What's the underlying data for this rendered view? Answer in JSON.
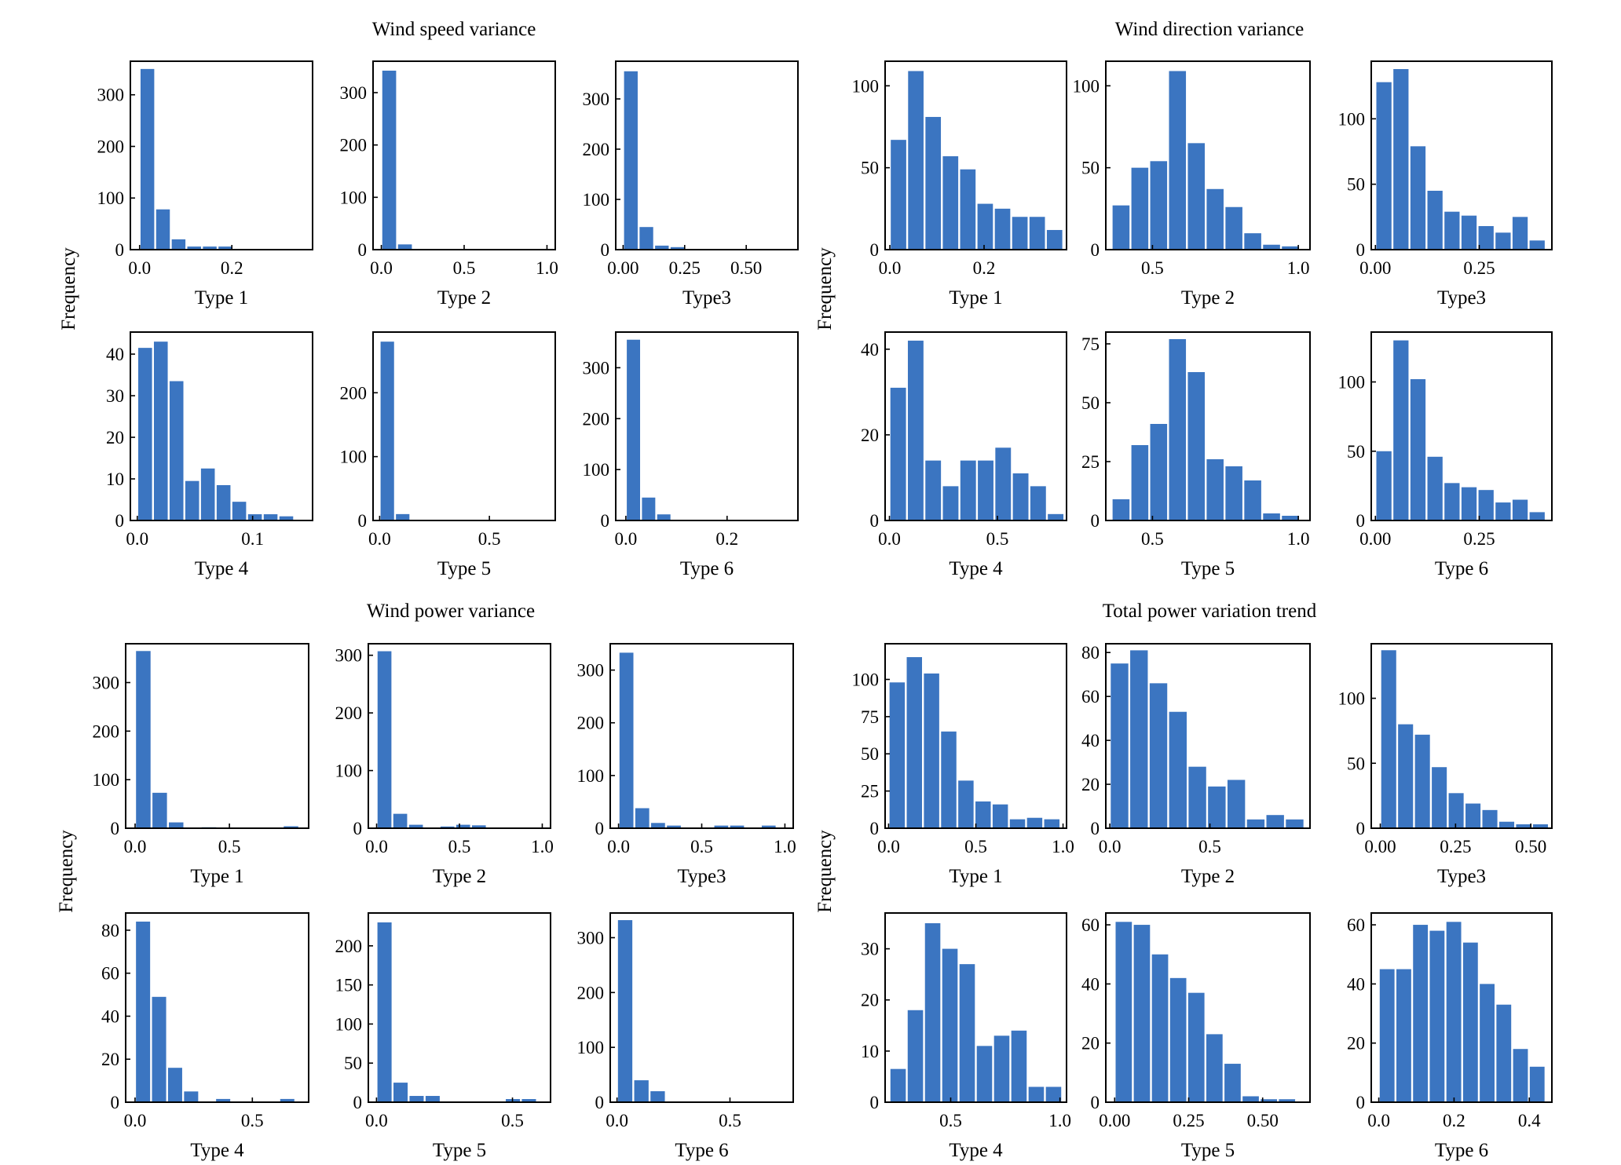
{
  "colors": {
    "bar": "#3b75c1",
    "axis": "#000000"
  },
  "chart_data": [
    {
      "title": "Wind speed variance",
      "ylabel": "Frequency",
      "panels": [
        {
          "type": "bar",
          "xlabel": "Type 1",
          "xlim": [
            -0.02,
            0.375
          ],
          "ylim": [
            0,
            365
          ],
          "xticks": [
            0.0,
            0.2
          ],
          "xtick_labels": [
            "0.0",
            "0.2"
          ],
          "yticks": [
            0,
            100,
            200,
            300
          ],
          "ytick_labels": [
            "0",
            "100",
            "200",
            "300"
          ],
          "bin_start": 0.0,
          "bin_width": 0.0338,
          "values": [
            350,
            78,
            20,
            6,
            6,
            6
          ]
        },
        {
          "type": "bar",
          "xlabel": "Type 2",
          "xlim": [
            -0.05,
            1.05
          ],
          "ylim": [
            0,
            360
          ],
          "xticks": [
            0.0,
            0.5,
            1.0
          ],
          "xtick_labels": [
            "0.0",
            "0.5",
            "1.0"
          ],
          "yticks": [
            0,
            100,
            200,
            300
          ],
          "ytick_labels": [
            "0",
            "100",
            "200",
            "300"
          ],
          "bin_start": 0.0,
          "bin_width": 0.095,
          "values": [
            342,
            10
          ]
        },
        {
          "type": "bar",
          "xlabel": "Type3",
          "xlim": [
            -0.03,
            0.71
          ],
          "ylim": [
            0,
            375
          ],
          "xticks": [
            0.0,
            0.25,
            0.5
          ],
          "xtick_labels": [
            "0.00",
            "0.25",
            "0.50"
          ],
          "yticks": [
            0,
            100,
            200,
            300
          ],
          "ytick_labels": [
            "0",
            "100",
            "200",
            "300"
          ],
          "bin_start": 0.0,
          "bin_width": 0.063,
          "values": [
            355,
            45,
            8,
            5
          ]
        },
        {
          "type": "bar",
          "xlabel": "Type 4",
          "xlim": [
            -0.006,
            0.152
          ],
          "ylim": [
            0,
            45.3
          ],
          "xticks": [
            0.0,
            0.1
          ],
          "xtick_labels": [
            "0.0",
            "0.1"
          ],
          "yticks": [
            0,
            10,
            20,
            30,
            40
          ],
          "ytick_labels": [
            "0",
            "10",
            "20",
            "30",
            "40"
          ],
          "bin_start": 0.0,
          "bin_width": 0.0136,
          "values": [
            41.5,
            43,
            33.5,
            9.5,
            12.5,
            8.5,
            4.5,
            1.5,
            1.5,
            1
          ]
        },
        {
          "type": "bar",
          "xlabel": "Type 5",
          "xlim": [
            -0.03,
            0.8
          ],
          "ylim": [
            0,
            295
          ],
          "xticks": [
            0.0,
            0.5
          ],
          "xtick_labels": [
            "0.0",
            "0.5"
          ],
          "yticks": [
            0,
            100,
            200
          ],
          "ytick_labels": [
            "0",
            "100",
            "200"
          ],
          "bin_start": 0.0,
          "bin_width": 0.07,
          "values": [
            280,
            10
          ]
        },
        {
          "type": "bar",
          "xlabel": "Type 6",
          "xlim": [
            -0.02,
            0.34
          ],
          "ylim": [
            0,
            370
          ],
          "xticks": [
            0.0,
            0.2
          ],
          "xtick_labels": [
            "0.0",
            "0.2"
          ],
          "yticks": [
            0,
            100,
            200,
            300
          ],
          "ytick_labels": [
            "0",
            "100",
            "200",
            "300"
          ],
          "bin_start": 0.0,
          "bin_width": 0.03,
          "values": [
            355,
            45,
            12
          ]
        }
      ]
    },
    {
      "title": "Wind direction variance",
      "ylabel": "Frequency",
      "panels": [
        {
          "type": "bar",
          "xlabel": "Type 1",
          "xlim": [
            -0.01,
            0.375
          ],
          "ylim": [
            0,
            115
          ],
          "xticks": [
            0.0,
            0.2
          ],
          "xtick_labels": [
            "0.0",
            "0.2"
          ],
          "yticks": [
            0,
            50,
            100
          ],
          "ytick_labels": [
            "0",
            "50",
            "100"
          ],
          "bin_start": 0.0,
          "bin_width": 0.0368,
          "values": [
            67,
            109,
            81,
            57,
            49,
            28,
            25,
            20,
            20,
            12
          ]
        },
        {
          "type": "bar",
          "xlabel": "Type 2",
          "xlim": [
            0.34,
            1.04
          ],
          "ylim": [
            0,
            115
          ],
          "xticks": [
            0.5,
            1.0
          ],
          "xtick_labels": [
            "0.5",
            "1.0"
          ],
          "yticks": [
            0,
            50,
            100
          ],
          "ytick_labels": [
            "0",
            "50",
            "100"
          ],
          "bin_start": 0.36,
          "bin_width": 0.0645,
          "values": [
            27,
            50,
            54,
            109,
            65,
            37,
            26,
            10,
            3,
            2
          ]
        },
        {
          "type": "bar",
          "xlabel": "Type3",
          "xlim": [
            -0.01,
            0.425
          ],
          "ylim": [
            0,
            144
          ],
          "xticks": [
            0.0,
            0.25
          ],
          "xtick_labels": [
            "0.00",
            "0.25"
          ],
          "yticks": [
            0,
            50,
            100
          ],
          "ytick_labels": [
            "0",
            "50",
            "100"
          ],
          "bin_start": 0.0,
          "bin_width": 0.041,
          "values": [
            128,
            138,
            79,
            45,
            29,
            26,
            18,
            13,
            25,
            7
          ]
        },
        {
          "type": "bar",
          "xlabel": "Type 4",
          "xlim": [
            -0.02,
            0.82
          ],
          "ylim": [
            0,
            44
          ],
          "xticks": [
            0.0,
            0.5
          ],
          "xtick_labels": [
            "0.0",
            "0.5"
          ],
          "yticks": [
            0,
            20,
            40
          ],
          "ytick_labels": [
            "0",
            "20",
            "40"
          ],
          "bin_start": 0.0,
          "bin_width": 0.081,
          "values": [
            31,
            42,
            14,
            8,
            14,
            14,
            17,
            11,
            8,
            1.5
          ]
        },
        {
          "type": "bar",
          "xlabel": "Type 5",
          "xlim": [
            0.34,
            1.04
          ],
          "ylim": [
            0,
            80
          ],
          "xticks": [
            0.5,
            1.0
          ],
          "xtick_labels": [
            "0.5",
            "1.0"
          ],
          "yticks": [
            0,
            25,
            50,
            75
          ],
          "ytick_labels": [
            "0",
            "25",
            "50",
            "75"
          ],
          "bin_start": 0.36,
          "bin_width": 0.0645,
          "values": [
            9,
            32,
            41,
            77,
            63,
            26,
            23,
            17,
            3,
            2
          ]
        },
        {
          "type": "bar",
          "xlabel": "Type 6",
          "xlim": [
            -0.01,
            0.425
          ],
          "ylim": [
            0,
            136
          ],
          "xticks": [
            0.0,
            0.25
          ],
          "xtick_labels": [
            "0.00",
            "0.25"
          ],
          "yticks": [
            0,
            50,
            100
          ],
          "ytick_labels": [
            "0",
            "50",
            "100"
          ],
          "bin_start": 0.0,
          "bin_width": 0.041,
          "values": [
            50,
            130,
            102,
            46,
            27,
            24,
            22,
            13,
            15,
            6
          ]
        }
      ]
    },
    {
      "title": "Wind power variance",
      "ylabel": "Frequency",
      "panels": [
        {
          "type": "bar",
          "xlabel": "Type 1",
          "xlim": [
            -0.05,
            0.92
          ],
          "ylim": [
            0,
            380
          ],
          "xticks": [
            0.0,
            0.5
          ],
          "xtick_labels": [
            "0.0",
            "0.5"
          ],
          "yticks": [
            0,
            100,
            200,
            300
          ],
          "ytick_labels": [
            "0",
            "100",
            "200",
            "300"
          ],
          "bin_start": 0.0,
          "bin_width": 0.087,
          "values": [
            365,
            73,
            12,
            0,
            2,
            0,
            0,
            0,
            0,
            4
          ]
        },
        {
          "type": "bar",
          "xlabel": "Type 2",
          "xlim": [
            -0.05,
            1.05
          ],
          "ylim": [
            0,
            320
          ],
          "xticks": [
            0.0,
            0.5,
            1.0
          ],
          "xtick_labels": [
            "0.0",
            "0.5",
            "1.0"
          ],
          "yticks": [
            0,
            100,
            200,
            300
          ],
          "ytick_labels": [
            "0",
            "100",
            "200",
            "300"
          ],
          "bin_start": 0.0,
          "bin_width": 0.095,
          "values": [
            307,
            25,
            6,
            0,
            3,
            6,
            5,
            0,
            0,
            0
          ]
        },
        {
          "type": "bar",
          "xlabel": "Type3",
          "xlim": [
            -0.05,
            1.05
          ],
          "ylim": [
            0,
            350
          ],
          "xticks": [
            0.0,
            0.5,
            1.0
          ],
          "xtick_labels": [
            "0.0",
            "0.5",
            "1.0"
          ],
          "yticks": [
            0,
            100,
            200,
            300
          ],
          "ytick_labels": [
            "0",
            "100",
            "200",
            "300"
          ],
          "bin_start": 0.0,
          "bin_width": 0.095,
          "values": [
            333,
            38,
            10,
            5,
            0,
            0,
            5,
            5,
            0,
            5
          ]
        },
        {
          "type": "bar",
          "xlabel": "Type 4",
          "xlim": [
            -0.04,
            0.74
          ],
          "ylim": [
            0,
            88
          ],
          "xticks": [
            0.0,
            0.5
          ],
          "xtick_labels": [
            "0.0",
            "0.5"
          ],
          "yticks": [
            0,
            20,
            40,
            60,
            80
          ],
          "ytick_labels": [
            "0",
            "20",
            "40",
            "60",
            "80"
          ],
          "bin_start": 0.0,
          "bin_width": 0.0683,
          "values": [
            84,
            49,
            16,
            5,
            0,
            1.5,
            0,
            0,
            0,
            1.5
          ]
        },
        {
          "type": "bar",
          "xlabel": "Type 5",
          "xlim": [
            -0.03,
            0.64
          ],
          "ylim": [
            0,
            242
          ],
          "xticks": [
            0.0,
            0.5
          ],
          "xtick_labels": [
            "0.0",
            "0.5"
          ],
          "yticks": [
            0,
            50,
            100,
            150,
            200
          ],
          "ytick_labels": [
            "0",
            "50",
            "100",
            "150",
            "200"
          ],
          "bin_start": 0.0,
          "bin_width": 0.059,
          "values": [
            230,
            25,
            8,
            8,
            0,
            0,
            0,
            0,
            4,
            4
          ]
        },
        {
          "type": "bar",
          "xlabel": "Type 6",
          "xlim": [
            -0.03,
            0.78
          ],
          "ylim": [
            0,
            345
          ],
          "xticks": [
            0.0,
            0.5
          ],
          "xtick_labels": [
            "0.0",
            "0.5"
          ],
          "yticks": [
            0,
            100,
            200,
            300
          ],
          "ytick_labels": [
            "0",
            "100",
            "200",
            "300"
          ],
          "bin_start": 0.0,
          "bin_width": 0.072,
          "values": [
            332,
            40,
            20
          ]
        }
      ]
    },
    {
      "title": "Total power variation trend",
      "ylabel": "Frequency",
      "panels": [
        {
          "type": "bar",
          "xlabel": "Type 1",
          "xlim": [
            -0.02,
            1.02
          ],
          "ylim": [
            0,
            124
          ],
          "xticks": [
            0.0,
            0.5,
            1.0
          ],
          "xtick_labels": [
            "0.0",
            "0.5",
            "1.0"
          ],
          "yticks": [
            0,
            25,
            50,
            75,
            100
          ],
          "ytick_labels": [
            "0",
            "25",
            "50",
            "75",
            "100"
          ],
          "bin_start": 0.0,
          "bin_width": 0.0985,
          "values": [
            98,
            115,
            104,
            65,
            32,
            18,
            16,
            6,
            7,
            6
          ]
        },
        {
          "type": "bar",
          "xlabel": "Type 2",
          "xlim": [
            -0.02,
            1.0
          ],
          "ylim": [
            0,
            84
          ],
          "xticks": [
            0.0,
            0.5
          ],
          "xtick_labels": [
            "0.0",
            "0.5"
          ],
          "yticks": [
            0,
            20,
            40,
            60,
            80
          ],
          "ytick_labels": [
            "0",
            "20",
            "40",
            "60",
            "80"
          ],
          "bin_start": 0.0,
          "bin_width": 0.0972,
          "values": [
            75,
            81,
            66,
            53,
            28,
            19,
            22,
            4,
            6,
            4
          ]
        },
        {
          "type": "bar",
          "xlabel": "Type3",
          "xlim": [
            -0.03,
            0.57
          ],
          "ylim": [
            0,
            142
          ],
          "xticks": [
            0.0,
            0.25,
            0.5
          ],
          "xtick_labels": [
            "0.00",
            "0.25",
            "0.50"
          ],
          "yticks": [
            0,
            50,
            100
          ],
          "ytick_labels": [
            "0",
            "50",
            "100"
          ],
          "bin_start": 0.0,
          "bin_width": 0.056,
          "values": [
            137,
            80,
            72,
            47,
            27,
            19,
            14,
            5,
            3,
            3
          ]
        },
        {
          "type": "bar",
          "xlabel": "Type 4",
          "xlim": [
            0.2,
            1.03
          ],
          "ylim": [
            0,
            37
          ],
          "xticks": [
            0.5,
            1.0
          ],
          "xtick_labels": [
            "0.5",
            "1.0"
          ],
          "yticks": [
            0,
            10,
            20,
            30
          ],
          "ytick_labels": [
            "0",
            "10",
            "20",
            "30"
          ],
          "bin_start": 0.22,
          "bin_width": 0.079,
          "values": [
            6.5,
            18,
            35,
            30,
            27,
            11,
            13,
            14,
            3,
            3
          ]
        },
        {
          "type": "bar",
          "xlabel": "Type 5",
          "xlim": [
            -0.03,
            0.66
          ],
          "ylim": [
            0,
            64
          ],
          "xticks": [
            0.0,
            0.25,
            0.5
          ],
          "xtick_labels": [
            "0.00",
            "0.25",
            "0.50"
          ],
          "yticks": [
            0,
            20,
            40,
            60
          ],
          "ytick_labels": [
            "0",
            "20",
            "40",
            "60"
          ],
          "bin_start": 0.0,
          "bin_width": 0.0613,
          "values": [
            61,
            60,
            50,
            42,
            37,
            23,
            13,
            2,
            1,
            1
          ]
        },
        {
          "type": "bar",
          "xlabel": "Type 6",
          "xlim": [
            -0.02,
            0.46
          ],
          "ylim": [
            0,
            64
          ],
          "xticks": [
            0.0,
            0.2,
            0.4
          ],
          "xtick_labels": [
            "0.0",
            "0.2",
            "0.4"
          ],
          "yticks": [
            0,
            20,
            40,
            60
          ],
          "ytick_labels": [
            "0",
            "20",
            "40",
            "60"
          ],
          "bin_start": 0.0,
          "bin_width": 0.0443,
          "values": [
            45,
            45,
            60,
            58,
            61,
            54,
            40,
            33,
            18,
            12
          ]
        }
      ]
    }
  ]
}
